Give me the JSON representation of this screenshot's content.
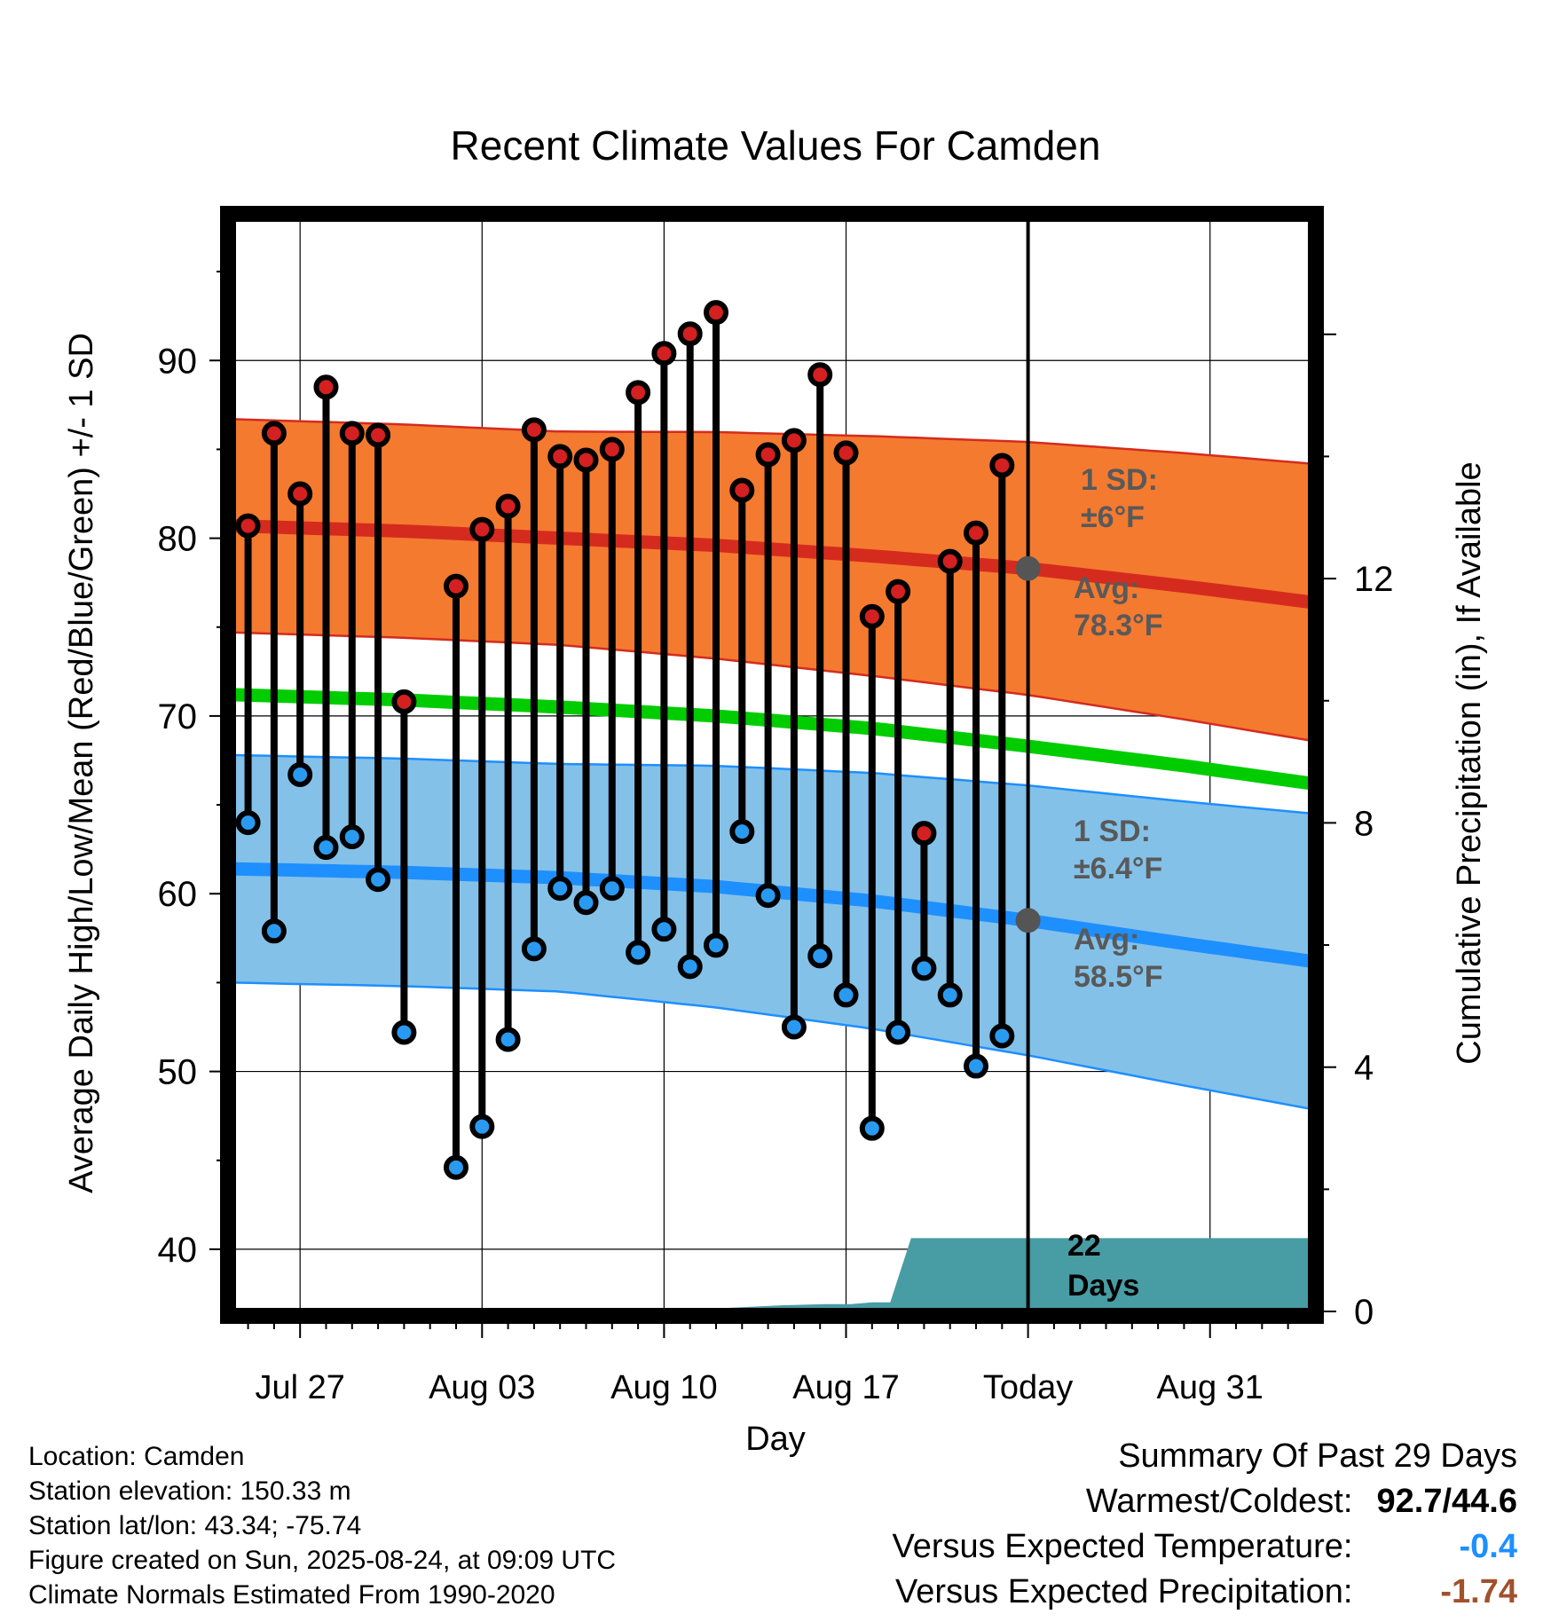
{
  "chart_data": {
    "type": "line",
    "title": "Recent Climate Values For Camden",
    "xlabel": "Day",
    "ylabel": "Average Daily High/Low/Mean (Red/Blue/Green) +/- 1 SD",
    "y2label": "Cumulative Precipitation (in), If Available",
    "ylim": [
      36.5,
      98
    ],
    "y2lim": [
      0,
      17.9
    ],
    "x_range_day_index": [
      -2.6,
      38.9
    ],
    "y_ticks": [
      40,
      50,
      60,
      70,
      80,
      90
    ],
    "y2_ticks": [
      0,
      4,
      8,
      12
    ],
    "x_ticks": [
      {
        "day": 0,
        "label": "Jul 27"
      },
      {
        "day": 7,
        "label": "Aug 03"
      },
      {
        "day": 14,
        "label": "Aug 10"
      },
      {
        "day": 21,
        "label": "Aug 17"
      },
      {
        "day": 28,
        "label": "Today"
      },
      {
        "day": 35,
        "label": "Aug 31"
      }
    ],
    "grid": true,
    "today_day": 28,
    "daily_observations": {
      "day": [
        -2,
        -1,
        0,
        1,
        2,
        3,
        4,
        6,
        7,
        8,
        9,
        10,
        11,
        12,
        13,
        14,
        15,
        16,
        17,
        18,
        19,
        20,
        21,
        22,
        23,
        24,
        25,
        26,
        27
      ],
      "high": [
        80.7,
        85.9,
        82.5,
        88.5,
        85.9,
        85.8,
        70.8,
        77.3,
        80.5,
        81.8,
        86.1,
        84.6,
        84.4,
        85.0,
        88.2,
        90.4,
        91.5,
        92.7,
        82.7,
        84.7,
        85.5,
        89.2,
        84.8,
        75.6,
        77.0,
        63.4,
        78.7,
        80.3,
        84.1
      ],
      "low": [
        64.0,
        57.9,
        66.7,
        62.6,
        63.2,
        60.8,
        52.2,
        44.6,
        46.9,
        51.8,
        56.9,
        60.3,
        59.5,
        60.3,
        56.7,
        58.0,
        55.9,
        57.1,
        63.5,
        59.9,
        52.5,
        56.5,
        54.3,
        46.8,
        52.2,
        55.8,
        54.3,
        50.3,
        52.0
      ]
    },
    "normals": {
      "day": [
        -2.6,
        4,
        10,
        16,
        22,
        28,
        34,
        38.9
      ],
      "mean": [
        71.2,
        70.9,
        70.5,
        70.0,
        69.3,
        68.3,
        67.2,
        66.2
      ],
      "high_avg": [
        80.7,
        80.4,
        80.0,
        79.6,
        79.0,
        78.3,
        77.3,
        76.4
      ],
      "high_sd": 6,
      "low_avg": [
        61.4,
        61.2,
        60.9,
        60.4,
        59.6,
        58.5,
        57.2,
        56.2
      ],
      "low_sd": 6.4
    },
    "precipitation_cumulative": {
      "day": [
        -2.6,
        15.6,
        16.0,
        18.5,
        20.2,
        21.2,
        22.0,
        22.7,
        23.5,
        38.9
      ],
      "inches": [
        0,
        0,
        0.05,
        0.1,
        0.12,
        0.12,
        0.15,
        0.15,
        1.2,
        1.2
      ]
    },
    "annotations": {
      "high_sd_label": "1 SD:",
      "high_sd_value": "±6°F",
      "high_avg_label": "Avg:",
      "high_avg_value": "78.3°F",
      "low_sd_label": "1 SD:",
      "low_sd_value": "±6.4°F",
      "low_avg_label": "Avg:",
      "low_avg_value": "58.5°F",
      "days_count": "22",
      "days_word": "Days"
    },
    "colors": {
      "high_band": "#f47a30",
      "high_avg_line": "#d52b1e",
      "high_band_edge": "#d52b1e",
      "low_band": "#84c1e8",
      "low_avg_line": "#1e8fff",
      "low_band_edge": "#1e8fff",
      "mean_line": "#00cc00",
      "precip_fill": "#489ca4",
      "high_dot": "#d42020",
      "low_dot": "#2a9af0",
      "today_dot": "#555555",
      "annotation_text": "#595959"
    }
  },
  "info": {
    "location": "Location: Camden",
    "elevation": "Station elevation: 150.33 m",
    "latlon": "Station lat/lon: 43.34; -75.74",
    "created": "Figure created on Sun, 2025-08-24, at 09:09 UTC",
    "normals": "Climate Normals Estimated From 1990-2020"
  },
  "summary": {
    "title": "Summary Of Past 29 Days",
    "warm_cold_label": "Warmest/Coldest:",
    "warm_cold_value": "92.7/44.6",
    "temp_label": "Versus Expected Temperature:",
    "temp_value": "-0.4",
    "temp_color": "#1e8fff",
    "precip_label": "Versus Expected Precipitation:",
    "precip_value": "-1.74",
    "precip_color": "#a0522d"
  }
}
